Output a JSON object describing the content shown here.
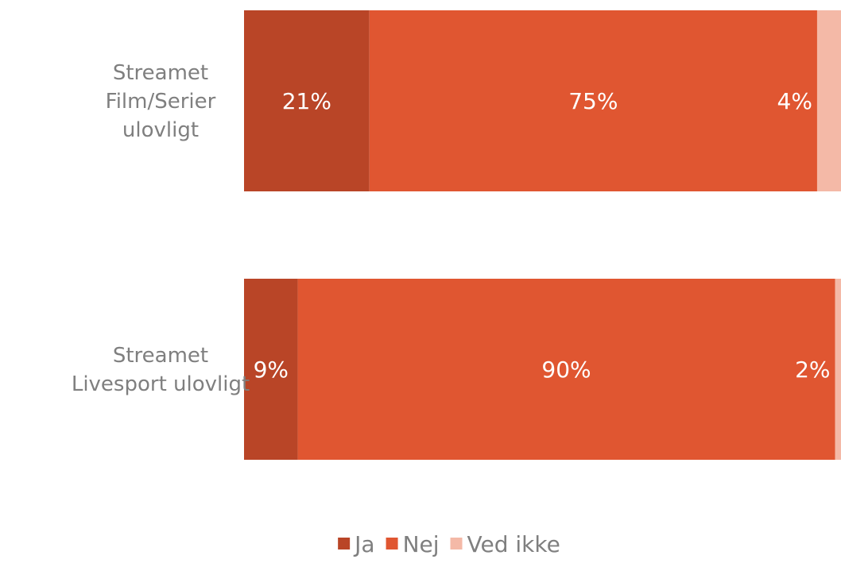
{
  "chart_data": {
    "type": "bar",
    "orientation": "horizontal",
    "stacked": "100%",
    "categories": [
      "Streamet Film/Serier ulovligt",
      "Streamet Livesport ulovligt"
    ],
    "category_label_lines": [
      [
        "Streamet",
        "Film/Serier",
        "ulovligt"
      ],
      [
        "Streamet",
        "Livesport ulovligt"
      ]
    ],
    "series": [
      {
        "name": "Ja",
        "values": [
          21,
          9
        ],
        "labels": [
          "21%",
          "9%"
        ],
        "color": "#B94527"
      },
      {
        "name": "Nej",
        "values": [
          75,
          90
        ],
        "labels": [
          "75%",
          "90%"
        ],
        "color": "#E05631"
      },
      {
        "name": "Ved ikke",
        "values": [
          4,
          2
        ],
        "labels": [
          "4%",
          "2%"
        ],
        "color": "#F4B9A7"
      }
    ],
    "xlim": [
      0,
      100
    ],
    "grid": false,
    "legend_position": "bottom",
    "title": "",
    "xlabel": "",
    "ylabel": ""
  }
}
